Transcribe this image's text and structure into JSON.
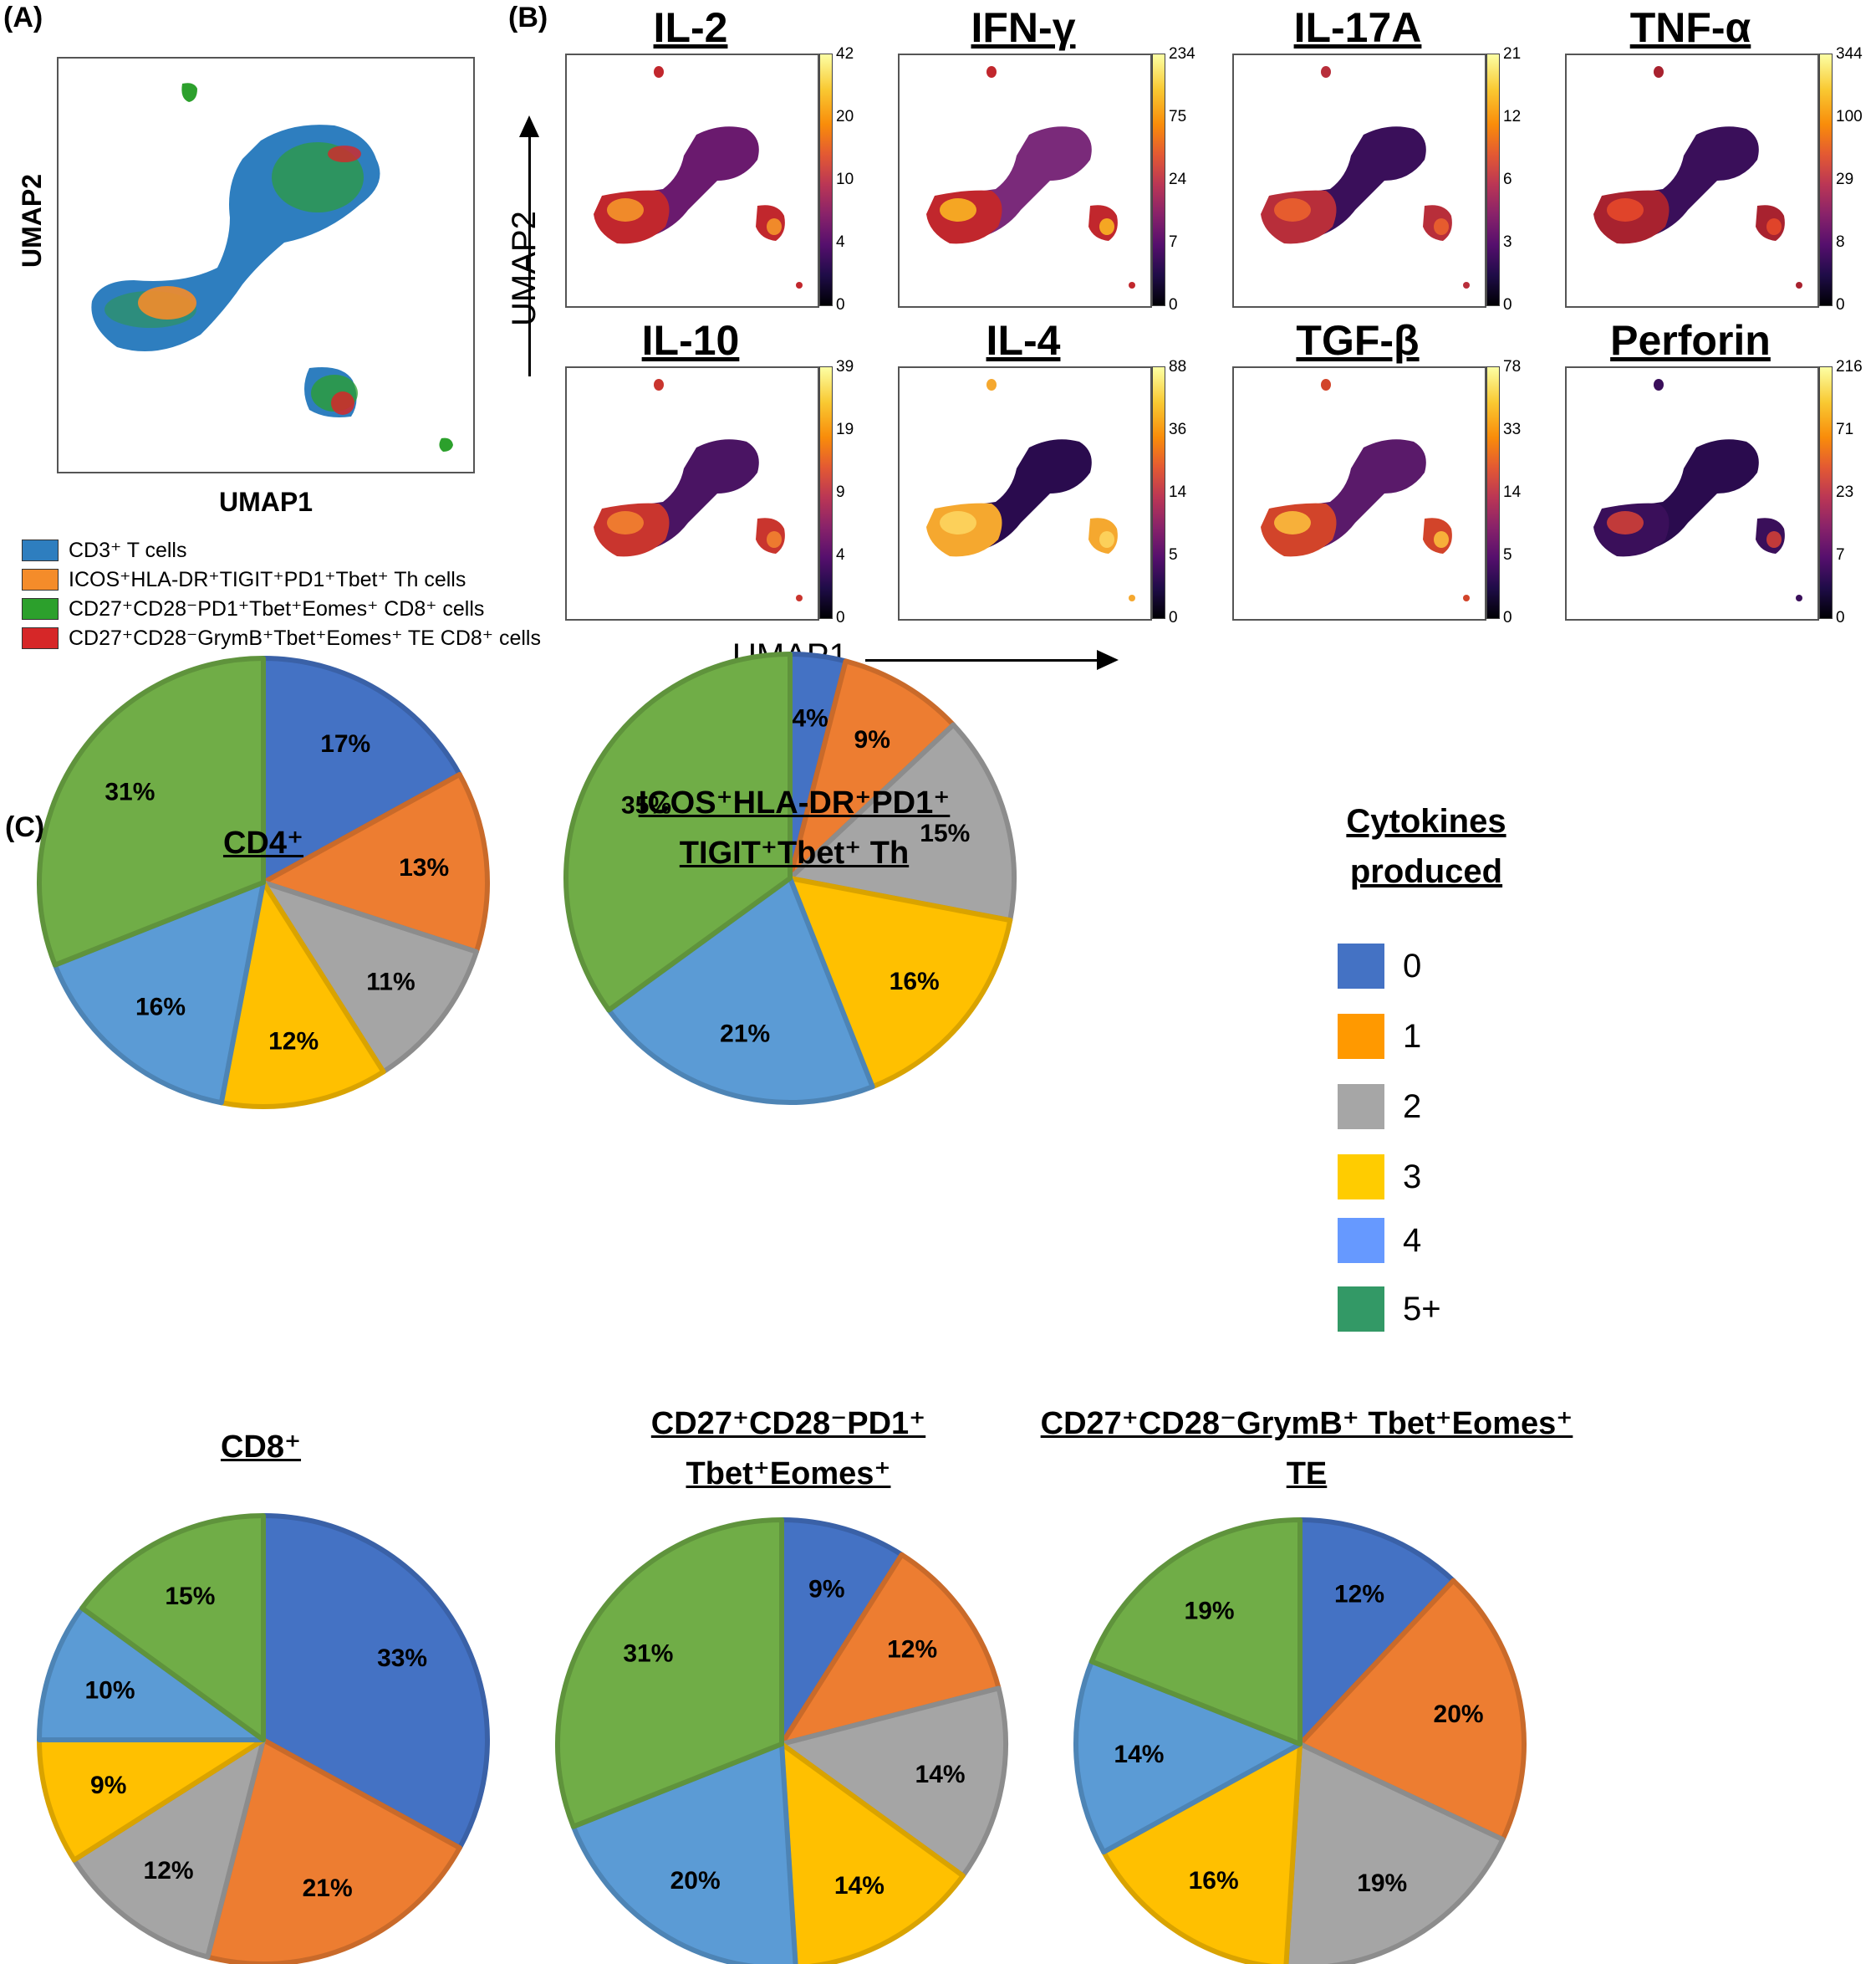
{
  "panel_a": {
    "letter": "(A)",
    "xlabel": "UMAP1",
    "ylabel": "UMAP2",
    "legend": [
      {
        "label": "CD3⁺ T cells",
        "color": "#2e7ebf"
      },
      {
        "label": "ICOS⁺HLA-DR⁺TIGIT⁺PD1⁺Tbet⁺ Th cells",
        "color": "#f48c2a"
      },
      {
        "label": "CD27⁺CD28⁻PD1⁺Tbet⁺Eomes⁺ CD8⁺ cells",
        "color": "#2ca02c"
      },
      {
        "label": "CD27⁺CD28⁻GrymB⁺Tbet⁺Eomes⁺ TE CD8⁺ cells",
        "color": "#d62728"
      }
    ]
  },
  "panel_b": {
    "letter": "(B)",
    "xlabel": "UMAP1",
    "ylabel": "UMAP2",
    "maps": [
      {
        "title": "IL-2",
        "ticks": [
          "42",
          "20",
          "10",
          "4",
          "0"
        ]
      },
      {
        "title": "IFN-γ",
        "ticks": [
          "234",
          "75",
          "24",
          "7",
          "0"
        ]
      },
      {
        "title": "IL-17A",
        "ticks": [
          "21",
          "12",
          "6",
          "3",
          "0"
        ]
      },
      {
        "title": "TNF-α",
        "ticks": [
          "344",
          "100",
          "29",
          "8",
          "0"
        ]
      },
      {
        "title": "IL-10",
        "ticks": [
          "39",
          "19",
          "9",
          "4",
          "0"
        ]
      },
      {
        "title": "IL-4",
        "ticks": [
          "88",
          "36",
          "14",
          "5",
          "0"
        ]
      },
      {
        "title": "TGF-β",
        "ticks": [
          "78",
          "33",
          "14",
          "5",
          "0"
        ]
      },
      {
        "title": "Perforin",
        "ticks": [
          "216",
          "71",
          "23",
          "7",
          "0"
        ]
      }
    ]
  },
  "panel_c": {
    "letter": "(C)",
    "legend_title_1": "Cytokines",
    "legend_title_2": "produced"
  },
  "chart_data": {
    "type": "pie",
    "categories": [
      "0",
      "1",
      "2",
      "3",
      "4",
      "5+"
    ],
    "colors": [
      "#4472c4",
      "#ed7d31",
      "#a5a5a5",
      "#ffc000",
      "#5b9bd5",
      "#70ad47"
    ],
    "legend_colors": [
      "#4472c4",
      "#ff9900",
      "#a6a6a6",
      "#ffcc00",
      "#6699ff",
      "#339966"
    ],
    "pies": [
      {
        "title_lines": [
          "CD4⁺"
        ],
        "values": [
          17,
          13,
          11,
          12,
          16,
          31
        ],
        "labels": [
          "17%",
          "13%",
          "11%",
          "12%",
          "16%",
          "31%"
        ]
      },
      {
        "title_lines": [
          "ICOS⁺HLA-DR⁺PD1⁺",
          "TIGIT⁺Tbet⁺ Th"
        ],
        "values": [
          4,
          9,
          15,
          16,
          21,
          35
        ],
        "labels": [
          "4%",
          "9%",
          "15%",
          "16%",
          "21%",
          "35%"
        ]
      },
      {
        "title_lines": [
          "CD8⁺"
        ],
        "values": [
          33,
          21,
          12,
          9,
          10,
          15
        ],
        "labels": [
          "33%",
          "21%",
          "12%",
          "9%",
          "10%",
          "15%"
        ]
      },
      {
        "title_lines": [
          "CD27⁺CD28⁻PD1⁺",
          "Tbet⁺Eomes⁺"
        ],
        "values": [
          9,
          12,
          14,
          14,
          20,
          31
        ],
        "labels": [
          "9%",
          "12%",
          "14%",
          "14%",
          "20%",
          "31%"
        ]
      },
      {
        "title_lines": [
          "CD27⁺CD28⁻GrymB⁺ Tbet⁺Eomes⁺",
          "TE"
        ],
        "values": [
          12,
          20,
          19,
          16,
          14,
          19
        ],
        "labels": [
          "12%",
          "20%",
          "19%",
          "16%",
          "14%",
          "19%"
        ]
      }
    ]
  }
}
